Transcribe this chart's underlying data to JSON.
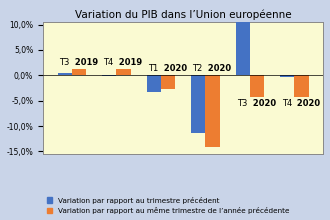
{
  "title": "Variation du PIB dans l’Union européenne",
  "categories": [
    "T3 2019",
    "T4 2019",
    "T1 2020",
    "T2 2020",
    "T3 2020",
    "T4 2020"
  ],
  "label_positions": [
    "top",
    "top",
    "top",
    "top",
    "bottom",
    "bottom"
  ],
  "series1_values": [
    0.5,
    -0.1,
    -3.2,
    -11.4,
    11.5,
    -0.4
  ],
  "series2_values": [
    1.3,
    1.2,
    -2.7,
    -14.1,
    -4.3,
    -4.3
  ],
  "series1_color": "#4472C4",
  "series2_color": "#ED7D31",
  "ylim": [
    -15.5,
    10.5
  ],
  "yticks": [
    -15,
    -10,
    -5,
    0,
    5,
    10
  ],
  "ytick_labels": [
    "-15,0%",
    "-10,0%",
    "-5,0%",
    "0,0%",
    "5,0%",
    "10,0%"
  ],
  "background_color": "#FAFAD2",
  "outer_background": "#C9D4E8",
  "legend1": "Variation par rapport au trimestre précédent",
  "legend2": "Variation par rapport au même trimestre de l’année précédente",
  "bar_width": 0.32,
  "title_fontsize": 7.5,
  "label_fontsize": 6.0,
  "tick_fontsize": 5.5,
  "legend_fontsize": 5.2
}
